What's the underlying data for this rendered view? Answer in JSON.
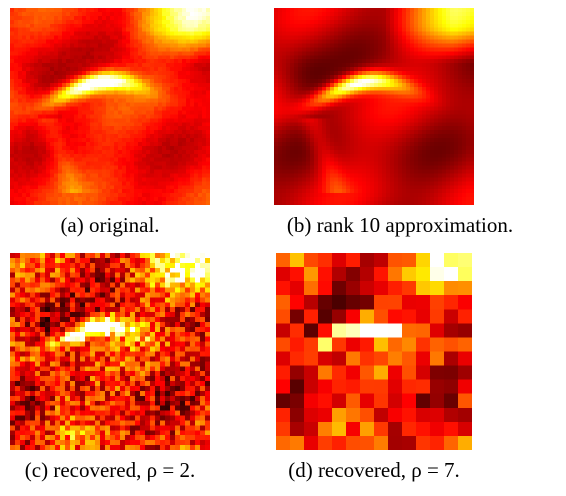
{
  "figures": [
    {
      "caption": "(a) original."
    },
    {
      "caption": "(b) rank 10 approximation."
    },
    {
      "caption": "(c) recovered, ρ = 2."
    },
    {
      "caption": "(d) recovered, ρ = 7."
    }
  ]
}
